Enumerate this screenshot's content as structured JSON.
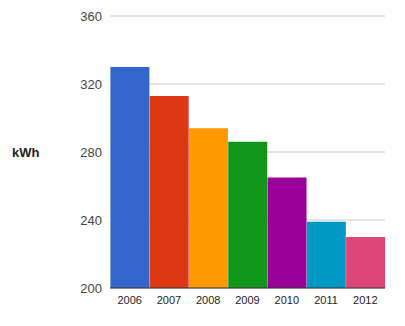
{
  "chart_data": {
    "type": "bar",
    "ylabel": "kWh",
    "categories": [
      "2006",
      "2007",
      "2008",
      "2009",
      "2010",
      "2011",
      "2012"
    ],
    "values": [
      330,
      313,
      294,
      286,
      265,
      239,
      230
    ],
    "colors": [
      "#3366cc",
      "#dc3912",
      "#ff9900",
      "#109618",
      "#990099",
      "#0099c6",
      "#dd4477"
    ],
    "ylim": [
      200,
      360
    ],
    "yticks": [
      200,
      240,
      280,
      320,
      360
    ],
    "grid": true
  }
}
